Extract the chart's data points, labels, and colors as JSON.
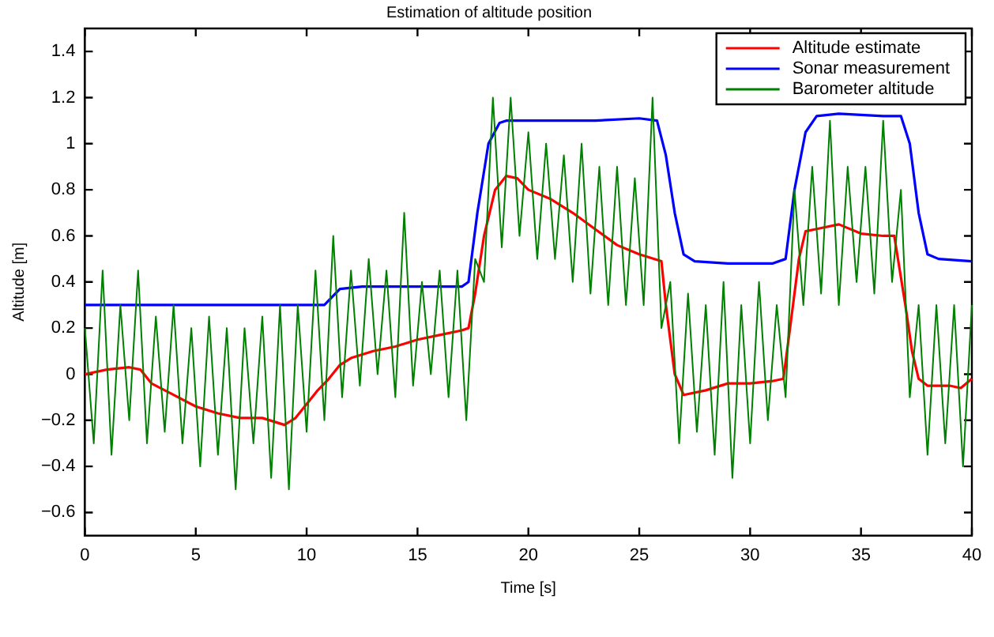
{
  "chart_data": {
    "type": "line",
    "title": "Estimation of altitude position",
    "xlabel": "Time [s]",
    "ylabel": "Altitude [m]",
    "xlim": [
      0,
      40
    ],
    "xticks": [
      0,
      5,
      10,
      15,
      20,
      25,
      30,
      35,
      40
    ],
    "ylim": [
      -0.7,
      1.5
    ],
    "yticks": [
      -0.6,
      -0.4,
      -0.2,
      0,
      0.2,
      0.4,
      0.6,
      0.8,
      1,
      1.2,
      1.4
    ],
    "grid": false,
    "legend": "top right",
    "marker": "none",
    "line_style": "solid",
    "series": [
      {
        "name": "Altitude estimate",
        "color": "#ff0000",
        "x": [
          0,
          1,
          2,
          2.5,
          3,
          4,
          5,
          6,
          7,
          8,
          9,
          9.5,
          10,
          10.5,
          11,
          11.5,
          12,
          13,
          14,
          15,
          16,
          17,
          17.3,
          17.6,
          18,
          18.5,
          19,
          19.5,
          20,
          21,
          22,
          23,
          24,
          25,
          26,
          26.2,
          26.6,
          27,
          28,
          29,
          30,
          31,
          31.5,
          31.8,
          32.2,
          32.5,
          33,
          34,
          35,
          36,
          36.5,
          37,
          37.3,
          37.6,
          38,
          39,
          39.5,
          40
        ],
        "values": [
          0,
          0.02,
          0.03,
          0.02,
          -0.04,
          -0.09,
          -0.14,
          -0.17,
          -0.19,
          -0.19,
          -0.22,
          -0.19,
          -0.13,
          -0.07,
          -0.02,
          0.04,
          0.07,
          0.1,
          0.12,
          0.15,
          0.17,
          0.19,
          0.2,
          0.35,
          0.6,
          0.8,
          0.86,
          0.85,
          0.8,
          0.76,
          0.7,
          0.63,
          0.56,
          0.52,
          0.49,
          0.3,
          0,
          -0.09,
          -0.07,
          -0.04,
          -0.04,
          -0.03,
          -0.02,
          0.2,
          0.5,
          0.62,
          0.63,
          0.65,
          0.61,
          0.6,
          0.6,
          0.3,
          0.1,
          -0.02,
          -0.05,
          -0.05,
          -0.06,
          -0.02
        ]
      },
      {
        "name": "Sonar measurement",
        "color": "#0000ff",
        "x": [
          0,
          10.8,
          11.5,
          12.5,
          17,
          17.3,
          17.7,
          18.2,
          18.7,
          19,
          20,
          21,
          22,
          23,
          25,
          25.8,
          26.2,
          26.6,
          27,
          27.5,
          29,
          31,
          31.6,
          32,
          32.5,
          33,
          34,
          36,
          36.8,
          37.2,
          37.6,
          38,
          38.5,
          40
        ],
        "values": [
          0.3,
          0.3,
          0.37,
          0.38,
          0.38,
          0.4,
          0.7,
          1.0,
          1.09,
          1.1,
          1.1,
          1.1,
          1.1,
          1.1,
          1.11,
          1.1,
          0.95,
          0.7,
          0.52,
          0.49,
          0.48,
          0.48,
          0.5,
          0.8,
          1.05,
          1.12,
          1.13,
          1.12,
          1.12,
          1.0,
          0.7,
          0.52,
          0.5,
          0.49
        ]
      },
      {
        "name": "Barometer altitude",
        "color": "#008000",
        "x": [
          0,
          0.4,
          0.8,
          1.2,
          1.6,
          2,
          2.4,
          2.8,
          3.2,
          3.6,
          4,
          4.4,
          4.8,
          5.2,
          5.6,
          6,
          6.4,
          6.8,
          7.2,
          7.6,
          8,
          8.4,
          8.8,
          9.2,
          9.6,
          10,
          10.4,
          10.8,
          11.2,
          11.6,
          12,
          12.4,
          12.8,
          13.2,
          13.6,
          14,
          14.4,
          14.8,
          15.2,
          15.6,
          16,
          16.4,
          16.8,
          17.2,
          17.6,
          18,
          18.4,
          18.8,
          19.2,
          19.6,
          20,
          20.4,
          20.8,
          21.2,
          21.6,
          22,
          22.4,
          22.8,
          23.2,
          23.6,
          24,
          24.4,
          24.8,
          25.2,
          25.6,
          26,
          26.4,
          26.8,
          27.2,
          27.6,
          28,
          28.4,
          28.8,
          29.2,
          29.6,
          30,
          30.4,
          30.8,
          31.2,
          31.6,
          32,
          32.4,
          32.8,
          33.2,
          33.6,
          34,
          34.4,
          34.8,
          35.2,
          35.6,
          36,
          36.4,
          36.8,
          37.2,
          37.6,
          38,
          38.4,
          38.8,
          39.2,
          39.6,
          40
        ],
        "values": [
          0.2,
          -0.3,
          0.45,
          -0.35,
          0.3,
          -0.2,
          0.45,
          -0.3,
          0.25,
          -0.25,
          0.3,
          -0.3,
          0.2,
          -0.4,
          0.25,
          -0.35,
          0.2,
          -0.5,
          0.2,
          -0.3,
          0.25,
          -0.45,
          0.3,
          -0.5,
          0.3,
          -0.25,
          0.45,
          -0.2,
          0.6,
          -0.1,
          0.45,
          -0.05,
          0.5,
          0,
          0.45,
          -0.1,
          0.7,
          -0.05,
          0.4,
          0,
          0.45,
          -0.1,
          0.45,
          -0.2,
          0.5,
          0.4,
          1.2,
          0.55,
          1.2,
          0.6,
          1.05,
          0.5,
          1,
          0.5,
          0.95,
          0.4,
          1,
          0.35,
          0.9,
          0.3,
          0.9,
          0.3,
          0.85,
          0.3,
          1.2,
          0.2,
          0.4,
          -0.3,
          0.35,
          -0.25,
          0.3,
          -0.35,
          0.4,
          -0.45,
          0.3,
          -0.3,
          0.4,
          -0.2,
          0.3,
          -0.1,
          0.8,
          0.3,
          0.9,
          0.35,
          1.1,
          0.3,
          0.9,
          0.4,
          0.9,
          0.35,
          1.1,
          0.4,
          0.8,
          -0.1,
          0.3,
          -0.35,
          0.3,
          -0.3,
          0.3,
          -0.4,
          0.3
        ]
      }
    ]
  }
}
